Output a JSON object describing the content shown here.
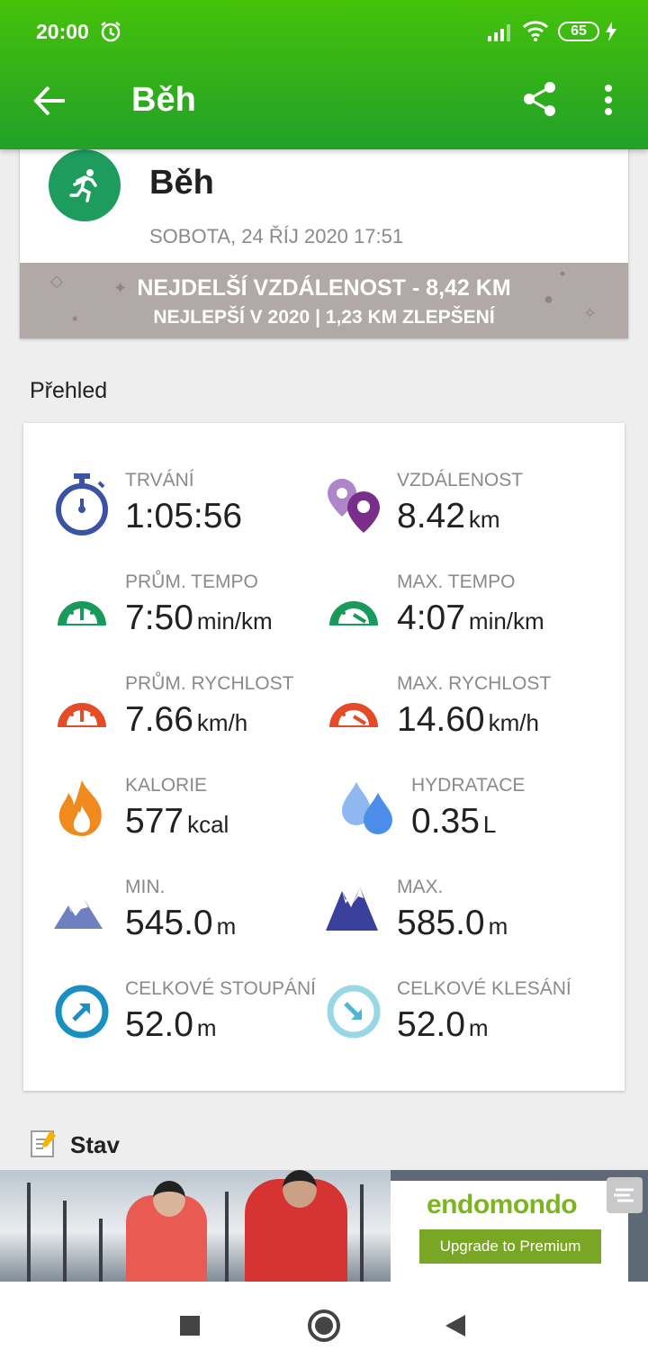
{
  "status_bar": {
    "time": "20:00",
    "battery": "65",
    "icons": [
      "alarm-icon",
      "signal-icon",
      "wifi-icon",
      "battery-icon",
      "charging-icon"
    ]
  },
  "app_bar": {
    "title": "Běh",
    "icons": [
      "back-arrow-icon",
      "share-icon",
      "more-vert-icon"
    ]
  },
  "workout": {
    "sport": "Běh",
    "date": "SOBOTA, 24 ŘÍJ 2020 17:51",
    "record_line1": "NEJDELŠÍ VZDÁLENOST  -  8,42 KM",
    "record_line2": "NEJLEPŠÍ V 2020  |  1,23 KM ZLEPŠENÍ"
  },
  "overview": {
    "title": "Přehled",
    "stats": [
      {
        "label": "TRVÁNÍ",
        "value": "1:05:56",
        "unit": "",
        "icon": "stopwatch-icon"
      },
      {
        "label": "VZDÁLENOST",
        "value": "8.42",
        "unit": "km",
        "icon": "map-pins-icon"
      },
      {
        "label": "PRŮM. TEMPO",
        "value": "7:50",
        "unit": "min/km",
        "icon": "speedometer-green-icon"
      },
      {
        "label": "MAX. TEMPO",
        "value": "4:07",
        "unit": "min/km",
        "icon": "speedometer-green-max-icon"
      },
      {
        "label": "PRŮM. RYCHLOST",
        "value": "7.66",
        "unit": "km/h",
        "icon": "speedometer-red-icon"
      },
      {
        "label": "MAX. RYCHLOST",
        "value": "14.60",
        "unit": "km/h",
        "icon": "speedometer-red-max-icon"
      },
      {
        "label": "KALORIE",
        "value": "577",
        "unit": "kcal",
        "icon": "flame-icon"
      },
      {
        "label": "HYDRATACE",
        "value": "0.35",
        "unit": "L",
        "icon": "water-drops-icon"
      },
      {
        "label": "MIN.",
        "value": "545.0",
        "unit": "m",
        "icon": "mountain-min-icon"
      },
      {
        "label": "MAX.",
        "value": "585.0",
        "unit": "m",
        "icon": "mountain-max-icon"
      },
      {
        "label": "CELKOVÉ STOUPÁNÍ",
        "value": "52.0",
        "unit": "m",
        "icon": "ascent-icon"
      },
      {
        "label": "CELKOVÉ KLESÁNÍ",
        "value": "52.0",
        "unit": "m",
        "icon": "descent-icon"
      }
    ]
  },
  "stav": {
    "label": "Stav",
    "icon": "notepad-icon"
  },
  "ad": {
    "brand": "endomondo",
    "cta": "Upgrade to Premium"
  },
  "nav": {
    "icons": [
      "recents-icon",
      "home-icon",
      "back-icon"
    ]
  },
  "colors": {
    "toolbar_green": "#3bb51a",
    "run_badge": "#1e9c5e",
    "banner": "#b1a8a8"
  }
}
